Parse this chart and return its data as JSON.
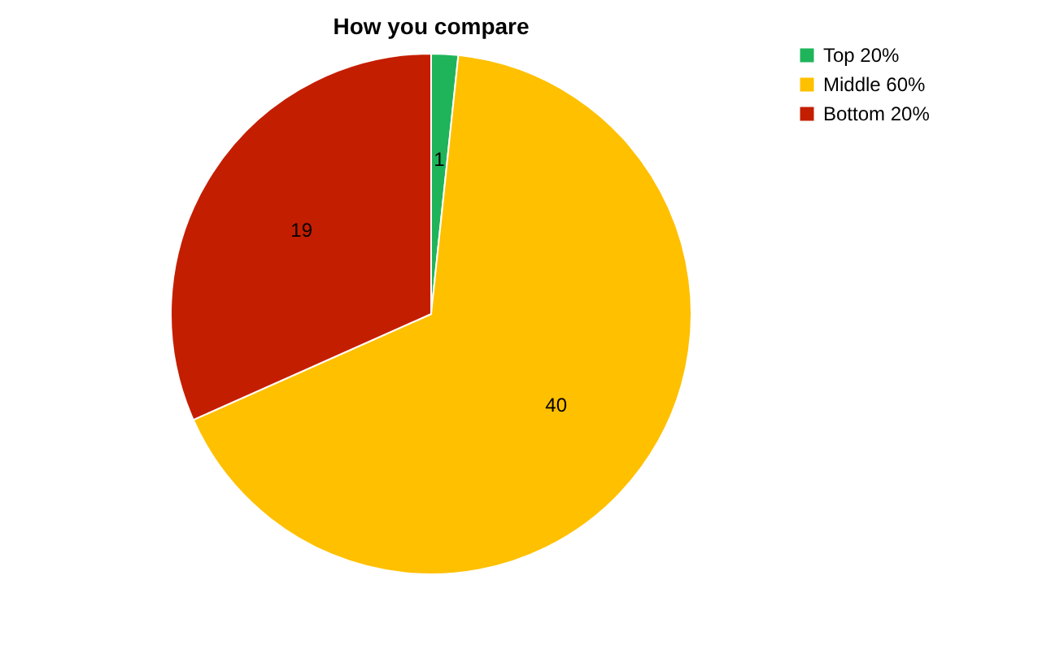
{
  "chart_data": {
    "type": "pie",
    "title": "How you compare",
    "categories": [
      "Top 20%",
      "Middle 60%",
      "Bottom 20%"
    ],
    "values": [
      1,
      40,
      19
    ],
    "colors": [
      "#1fb45a",
      "#ffc000",
      "#c41e00"
    ],
    "data_labels": true,
    "legend": "right"
  }
}
